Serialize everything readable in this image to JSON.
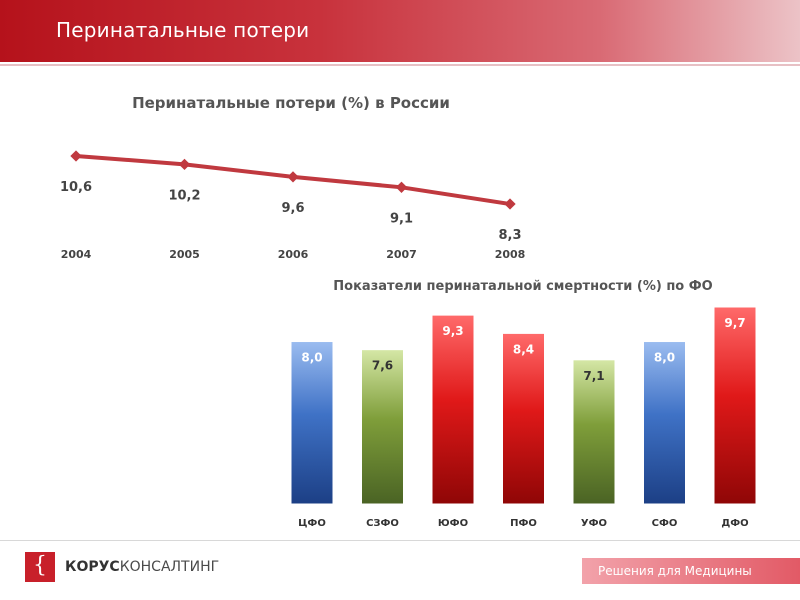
{
  "header": {
    "title": "Перинатальные потери"
  },
  "footer": {
    "logo_symbol": "{",
    "logo_brand": "КОРУС",
    "logo_suffix": "КОНСАЛТИНГ",
    "tagline": "Решения для Медицины"
  },
  "chart_data": [
    {
      "type": "line",
      "title": "Перинатальные потери (%) в России",
      "xlabel": "",
      "ylabel": "",
      "categories": [
        "2004",
        "2005",
        "2006",
        "2007",
        "2008"
      ],
      "series": [
        {
          "values": [
            10.6,
            10.2,
            9.6,
            9.1,
            8.3
          ],
          "labels": [
            "10,6",
            "10,2",
            "9,6",
            "9,1",
            "8,3"
          ]
        }
      ],
      "grid": false,
      "color": "#c0393f"
    },
    {
      "type": "bar",
      "title": "Показатели перинатальной смертности (%) по ФО",
      "xlabel": "",
      "ylabel": "",
      "categories": [
        "ЦФО",
        "СЗФО",
        "ЮФО",
        "ПФО",
        "УФО",
        "СФО",
        "ДФО"
      ],
      "values": [
        8.0,
        7.6,
        9.3,
        8.4,
        7.1,
        8.0,
        9.7
      ],
      "labels": [
        "8,0",
        "7,6",
        "9,3",
        "8,4",
        "7,1",
        "8,0",
        "9,7"
      ],
      "colors": [
        "blue",
        "green",
        "red",
        "red",
        "green",
        "blue",
        "red"
      ],
      "palette": {
        "blue": "#3f72c6",
        "green": "#7f9e3a",
        "red": "#e01919"
      },
      "grid": false
    }
  ]
}
